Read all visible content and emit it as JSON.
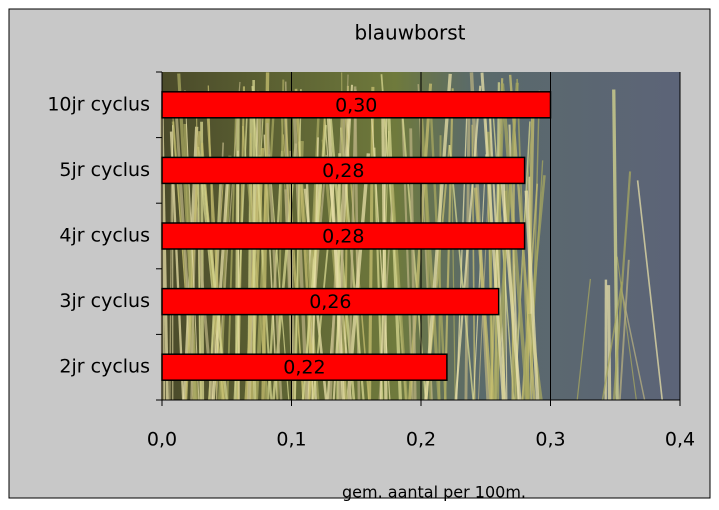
{
  "chart_data": {
    "type": "bar",
    "orientation": "horizontal",
    "title": "blauwborst",
    "x_label": "gem. aantal per 100m.",
    "categories": [
      "10jr cyclus",
      "5jr cyclus",
      "4jr cyclus",
      "3jr cyclus",
      "2jr cyclus"
    ],
    "values": [
      0.3,
      0.28,
      0.28,
      0.26,
      0.22
    ],
    "value_labels": [
      "0,30",
      "0,28",
      "0,28",
      "0,26",
      "0,22"
    ],
    "color": "#ff0000",
    "xlim": [
      0,
      0.4
    ],
    "xticks": [
      {
        "value": 0,
        "label": "0,0"
      },
      {
        "value": 0.1,
        "label": "0,1"
      },
      {
        "value": 0.2,
        "label": "0,2"
      },
      {
        "value": 0.3,
        "label": "0,3"
      },
      {
        "value": 0.4,
        "label": "0,4"
      }
    ],
    "grid": true
  }
}
